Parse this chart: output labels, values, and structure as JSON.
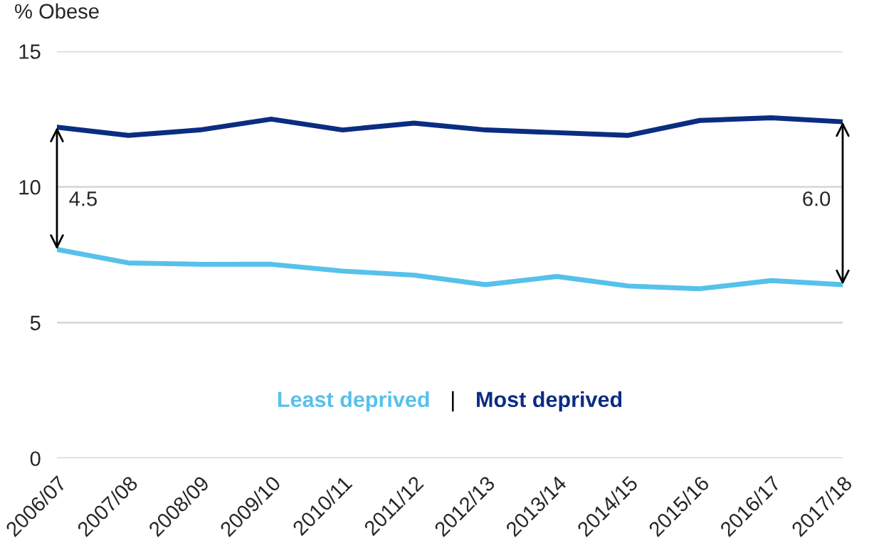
{
  "chart_data": {
    "type": "line",
    "ylabel": "% Obese",
    "categories": [
      "2006/07",
      "2007/08",
      "2008/09",
      "2009/10",
      "2010/11",
      "2011/12",
      "2012/13",
      "2013/14",
      "2014/15",
      "2015/16",
      "2016/17",
      "2017/18"
    ],
    "series": [
      {
        "name": "Least deprived",
        "color": "#56c1eb",
        "values": [
          7.7,
          7.2,
          7.15,
          7.15,
          6.9,
          6.75,
          6.4,
          6.7,
          6.35,
          6.25,
          6.55,
          6.4
        ]
      },
      {
        "name": "Most deprived",
        "color": "#0a2d82",
        "values": [
          12.2,
          11.9,
          12.1,
          12.5,
          12.1,
          12.35,
          12.1,
          12.0,
          11.9,
          12.45,
          12.55,
          12.4
        ]
      }
    ],
    "annotations": [
      "4.5",
      "6.0",
      "|"
    ],
    "ylim": [
      0,
      15
    ],
    "yticks": [
      0,
      5,
      10,
      15
    ],
    "grid": "y",
    "legend": "bottom",
    "marker": "none",
    "line_style": "solid"
  }
}
